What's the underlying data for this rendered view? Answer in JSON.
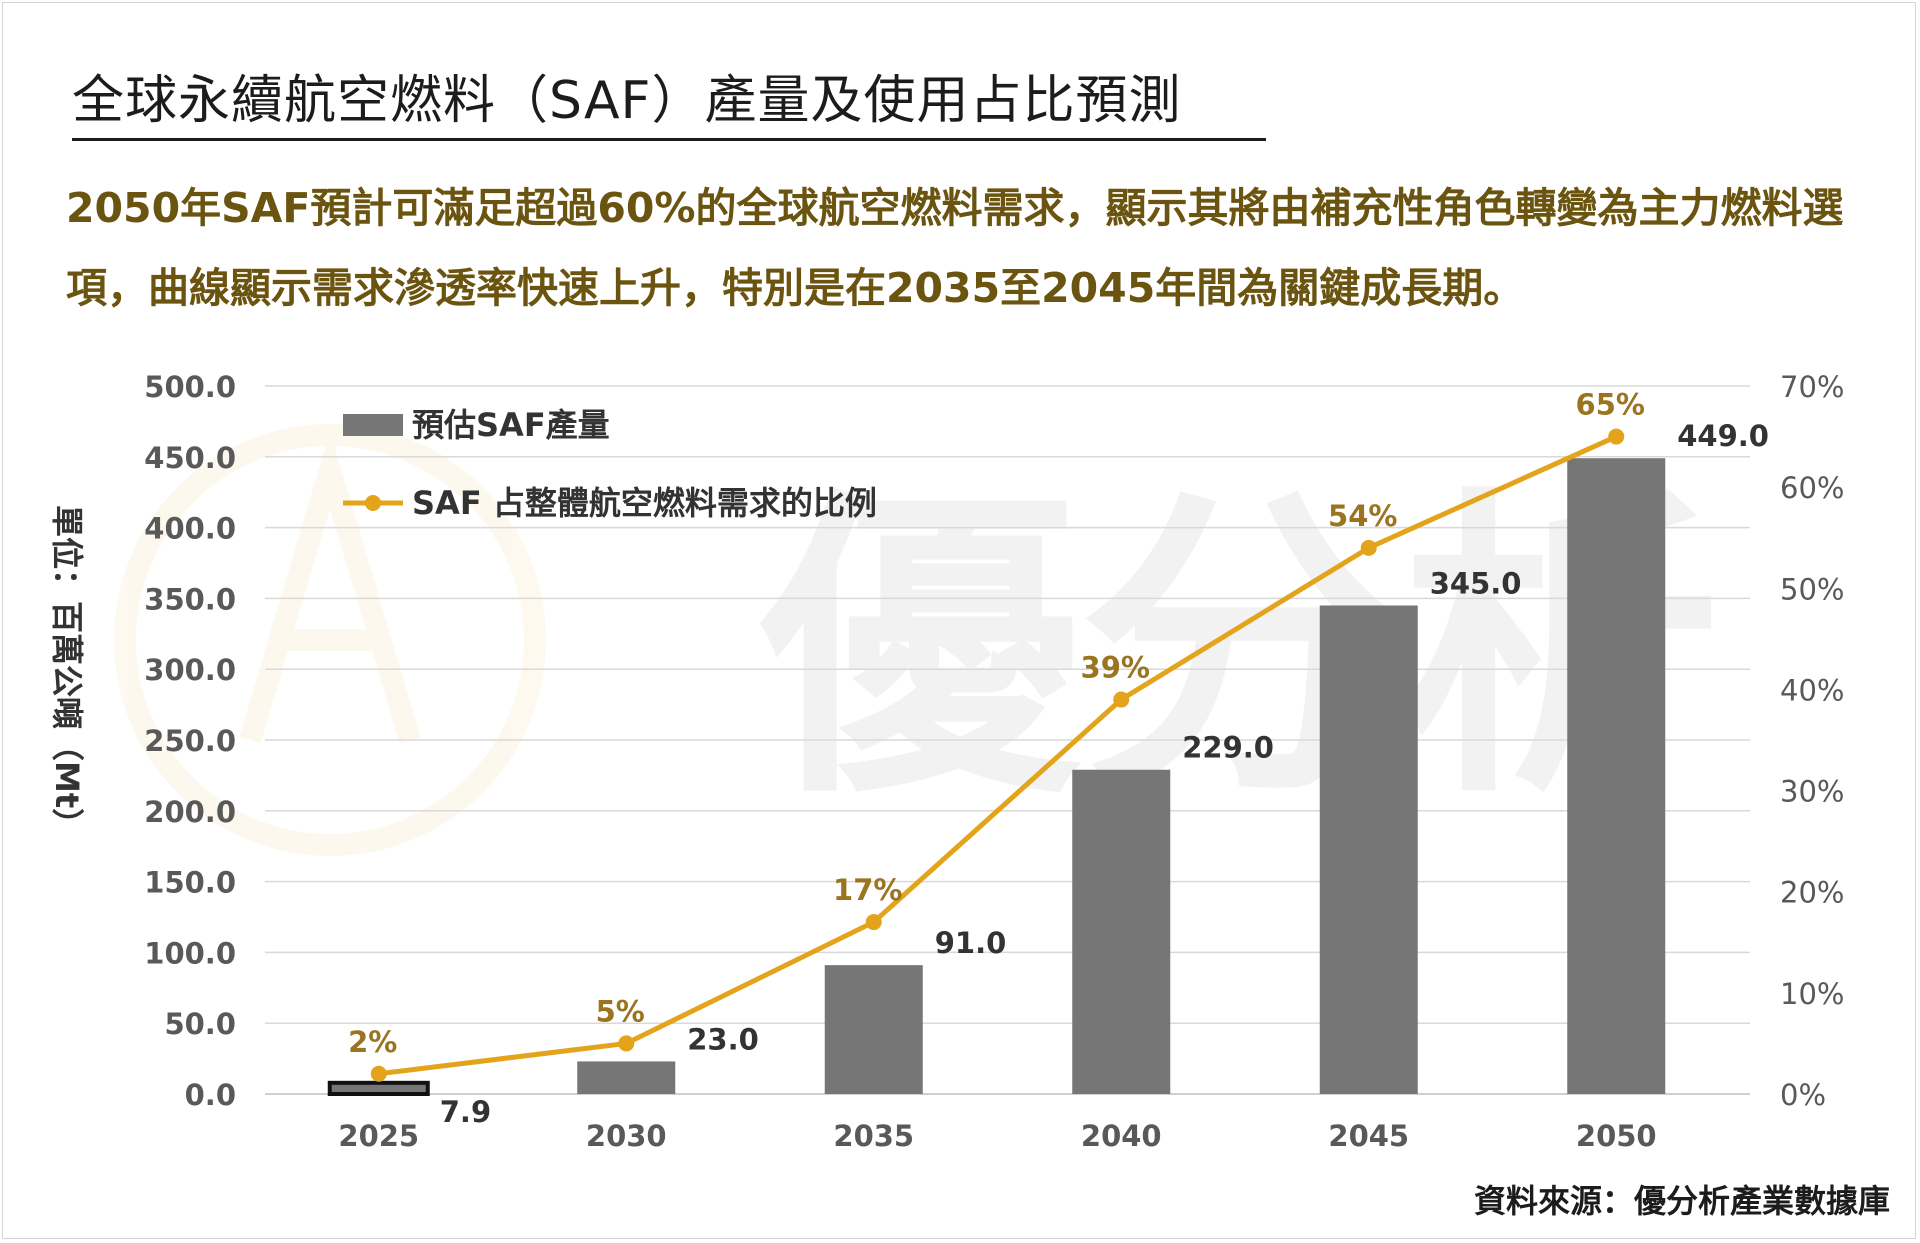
{
  "title": "全球永續航空燃料（SAF）產量及使用占比預測",
  "subtitle": "2050年SAF預計可滿足超過60%的全球航空燃料需求，顯示其將由補充性角色轉變為主力燃料選項，曲線顯示需求滲透率快速上升，特別是在2035至2045年間為關鍵成長期。",
  "source": "資料來源：優分析產業數據庫",
  "watermark": "優分析",
  "colors": {
    "bar": "#767676",
    "line": "#E3A31A",
    "line_label": "#9A7420",
    "subtitle": "#6b5410",
    "grid": "#d9d9d9"
  },
  "chart_data": {
    "type": "bar",
    "categories": [
      "2025",
      "2030",
      "2035",
      "2040",
      "2045",
      "2050"
    ],
    "ylabel": "單位：百萬公噸（Mt）",
    "ylim": [
      0,
      500
    ],
    "y_ticks": [
      "0.0",
      "50.0",
      "100.0",
      "150.0",
      "200.0",
      "250.0",
      "300.0",
      "350.0",
      "400.0",
      "450.0",
      "500.0"
    ],
    "y2lim": [
      0,
      70
    ],
    "y2_ticks": [
      "0%",
      "10%",
      "20%",
      "30%",
      "40%",
      "50%",
      "60%",
      "70%"
    ],
    "grid": true,
    "legend_position": "top-left",
    "series": [
      {
        "name": "預估SAF產量",
        "type": "bar",
        "axis": "left",
        "values": [
          7.9,
          23.0,
          91.0,
          229.0,
          345.0,
          449.0
        ],
        "labels": [
          "7.9",
          "23.0",
          "91.0",
          "229.0",
          "345.0",
          "449.0"
        ]
      },
      {
        "name": "SAF 占整體航空燃料需求的比例",
        "type": "line",
        "axis": "right",
        "values": [
          2,
          5,
          17,
          39,
          54,
          65
        ],
        "labels": [
          "2%",
          "5%",
          "17%",
          "39%",
          "54%",
          "65%"
        ]
      }
    ]
  }
}
